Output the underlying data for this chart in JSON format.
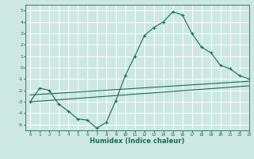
{
  "xlabel": "Humidex (Indice chaleur)",
  "xlim": [
    -0.5,
    23
  ],
  "ylim": [
    -5.5,
    5.5
  ],
  "xticks": [
    0,
    1,
    2,
    3,
    4,
    5,
    6,
    7,
    8,
    9,
    10,
    11,
    12,
    13,
    14,
    15,
    16,
    17,
    18,
    19,
    20,
    21,
    22,
    23
  ],
  "yticks": [
    -5,
    -4,
    -3,
    -2,
    -1,
    0,
    1,
    2,
    3,
    4,
    5
  ],
  "bg_color": "#cce8e0",
  "line_color": "#1a6b5a",
  "grid_color": "#ffffff",
  "curve_x": [
    0,
    1,
    2,
    3,
    4,
    5,
    6,
    7,
    8,
    9,
    10,
    11,
    12,
    13,
    14,
    15,
    16,
    17,
    18,
    19,
    20,
    21,
    22,
    23
  ],
  "curve_y": [
    -3.0,
    -1.8,
    -2.0,
    -3.2,
    -3.8,
    -4.5,
    -4.6,
    -5.3,
    -4.8,
    -2.9,
    -0.7,
    1.0,
    2.8,
    3.5,
    4.0,
    4.9,
    4.6,
    3.0,
    1.8,
    1.3,
    0.2,
    -0.1,
    -0.7,
    -1.0
  ],
  "line1_x": [
    0,
    23
  ],
  "line1_y": [
    -2.4,
    -1.2
  ],
  "line2_x": [
    0,
    23
  ],
  "line2_y": [
    -3.0,
    -1.6
  ]
}
